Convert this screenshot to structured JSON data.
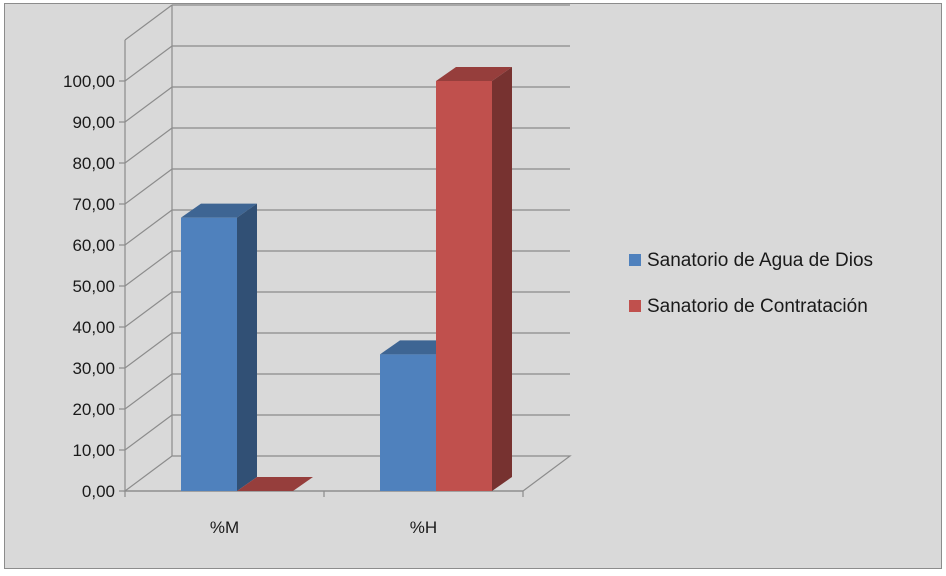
{
  "chart_data": {
    "type": "bar",
    "title": "",
    "xlabel": "",
    "ylabel": "",
    "categories": [
      "%M",
      "%H"
    ],
    "series": [
      {
        "name": "Sanatorio de Agua de Dios",
        "values": [
          66.67,
          33.33
        ],
        "color": "#4f81bd"
      },
      {
        "name": "Sanatorio de Contratación",
        "values": [
          0.0,
          100.0
        ],
        "color": "#c0504d"
      }
    ],
    "ylim": [
      0,
      100
    ],
    "yticks": [
      "0,00",
      "10,00",
      "20,00",
      "30,00",
      "40,00",
      "50,00",
      "60,00",
      "70,00",
      "80,00",
      "90,00",
      "100,00"
    ],
    "grid": true,
    "legend_position": "right",
    "style": "3d-clustered-column"
  }
}
